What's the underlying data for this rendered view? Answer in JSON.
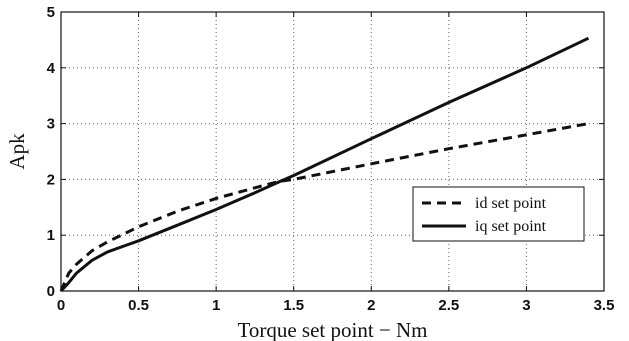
{
  "chart_data": {
    "type": "line",
    "title": "",
    "xlabel": "Torque set point − Nm",
    "ylabel": "Apk",
    "xlim": [
      0,
      3.5
    ],
    "ylim": [
      0,
      5
    ],
    "xticks": [
      "0",
      "0.5",
      "1",
      "1.5",
      "2",
      "2.5",
      "3",
      "3.5"
    ],
    "yticks": [
      "0",
      "1",
      "2",
      "3",
      "4",
      "5"
    ],
    "grid": true,
    "legend_position": "center-right",
    "series": [
      {
        "name": "id set point",
        "style": "dashed",
        "color": "#111111",
        "x": [
          0,
          0.05,
          0.1,
          0.2,
          0.3,
          0.5,
          0.75,
          1.0,
          1.25,
          1.4,
          1.5,
          2.0,
          2.5,
          3.0,
          3.4
        ],
        "y": [
          0,
          0.32,
          0.48,
          0.72,
          0.88,
          1.15,
          1.43,
          1.66,
          1.85,
          1.96,
          2.0,
          2.28,
          2.55,
          2.8,
          3.0
        ]
      },
      {
        "name": "iq set point",
        "style": "solid",
        "color": "#111111",
        "x": [
          0,
          0.05,
          0.1,
          0.2,
          0.3,
          0.5,
          0.75,
          1.0,
          1.25,
          1.4,
          1.5,
          2.0,
          2.5,
          3.0,
          3.4
        ],
        "y": [
          0,
          0.15,
          0.32,
          0.55,
          0.7,
          0.9,
          1.18,
          1.46,
          1.76,
          1.95,
          2.07,
          2.73,
          3.38,
          4.0,
          4.53
        ]
      }
    ]
  }
}
